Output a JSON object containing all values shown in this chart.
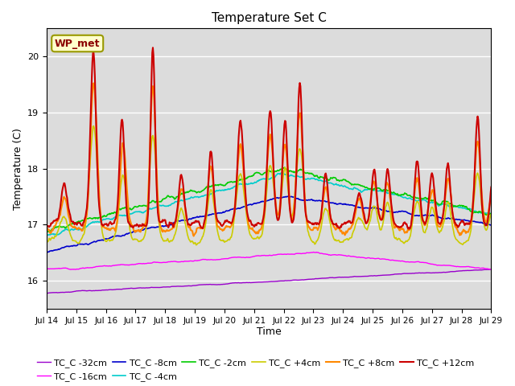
{
  "title": "Temperature Set C",
  "xlabel": "Time",
  "ylabel": "Temperature (C)",
  "ylim": [
    15.5,
    20.5
  ],
  "xlim": [
    0,
    360
  ],
  "bg_color": "#dcdcdc",
  "annotation_text": "WP_met",
  "annotation_bg": "#ffffcc",
  "annotation_border": "#999900",
  "series_order": [
    "TC_C -32cm",
    "TC_C -16cm",
    "TC_C -8cm",
    "TC_C -4cm",
    "TC_C -2cm",
    "TC_C +4cm",
    "TC_C +8cm",
    "TC_C +12cm"
  ],
  "series_colors": [
    "#9900cc",
    "#ff00ff",
    "#0000cc",
    "#00cccc",
    "#00cc00",
    "#cccc00",
    "#ff8800",
    "#cc0000"
  ],
  "series_lw": [
    1.0,
    1.0,
    1.2,
    1.2,
    1.2,
    1.2,
    1.5,
    1.5
  ],
  "xtick_labels": [
    "Jul 14",
    "Jul 15",
    "Jul 16",
    "Jul 17",
    "Jul 18",
    "Jul 19",
    "Jul 20",
    "Jul 21",
    "Jul 22",
    "Jul 23",
    "Jul 24",
    "Jul 25",
    "Jul 26",
    "Jul 27",
    "Jul 28",
    "Jul 29"
  ],
  "xtick_positions": [
    0,
    24,
    48,
    72,
    96,
    120,
    144,
    168,
    192,
    216,
    240,
    264,
    288,
    312,
    336,
    360
  ],
  "legend_ncol": 6
}
